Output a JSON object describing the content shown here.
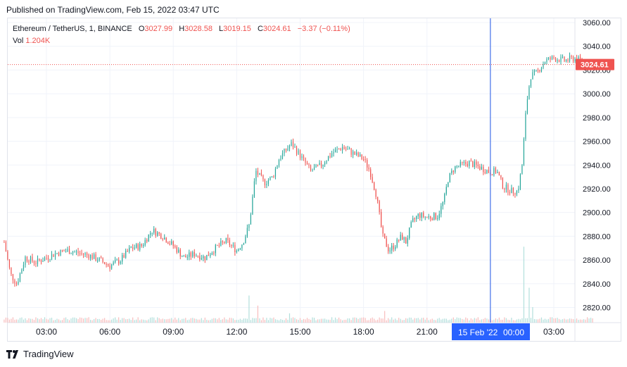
{
  "header": {
    "published": "Published on TradingView.com, Feb 15, 2022 03:47 UTC"
  },
  "legend": {
    "symbol": "Ethereum / TetherUS, 1, BINANCE",
    "open_label": "O",
    "open": "3027.99",
    "high_label": "H",
    "high": "3028.58",
    "low_label": "L",
    "low": "3019.15",
    "close_label": "C",
    "close": "3024.61",
    "change": "−3.37 (−0.11%)",
    "vol_label": "Vol",
    "vol_value": "1.204K"
  },
  "footer": {
    "brand": "TradingView"
  },
  "colors": {
    "up": "#26a69a",
    "down": "#ef5350",
    "grid": "#f0f3fa",
    "crosshair": "#1e53e5",
    "price_line": "#ef5350",
    "axis_text": "#131722",
    "time_label_bg": "#2962ff",
    "vol_up": "#b2dfdb",
    "vol_down": "#f7bdbd"
  },
  "chart_data": {
    "type": "candlestick",
    "y_axis": {
      "side": "right",
      "min": 2810,
      "max": 3065,
      "ticks": [
        2820,
        2840,
        2860,
        2880,
        2900,
        2920,
        2940,
        2960,
        2980,
        3000,
        3020,
        3040,
        3060
      ],
      "tick_labels": [
        "2820.00",
        "2840.00",
        "2860.00",
        "2880.00",
        "2900.00",
        "2920.00",
        "2940.00",
        "2960.00",
        "2980.00",
        "3000.00",
        "3020.00",
        "3040.00",
        "3060.00"
      ]
    },
    "x_axis": {
      "unit": "hours since 00:00 Feb 14 2022 (UTC)",
      "start": 1.0,
      "end": 28.9,
      "tick_hours": [
        3,
        6,
        9,
        12,
        15,
        18,
        21,
        27
      ],
      "tick_labels": [
        "03:00",
        "06:00",
        "09:00",
        "12:00",
        "15:00",
        "18:00",
        "21:00",
        "03:00"
      ]
    },
    "last_price": 3024.61,
    "last_price_label": "3024.61",
    "crosshair": {
      "hour": 24.0,
      "label_date": "15 Feb '22",
      "label_time": "00:00"
    },
    "price_path": [
      [
        1.0,
        2875
      ],
      [
        1.3,
        2848
      ],
      [
        1.6,
        2840
      ],
      [
        2.0,
        2862
      ],
      [
        2.5,
        2858
      ],
      [
        3.0,
        2862
      ],
      [
        3.5,
        2866
      ],
      [
        4.0,
        2868
      ],
      [
        5.0,
        2864
      ],
      [
        5.5,
        2860
      ],
      [
        6.0,
        2855
      ],
      [
        6.5,
        2860
      ],
      [
        7.0,
        2870
      ],
      [
        7.5,
        2872
      ],
      [
        8.0,
        2885
      ],
      [
        8.5,
        2880
      ],
      [
        9.0,
        2872
      ],
      [
        9.5,
        2862
      ],
      [
        10.0,
        2865
      ],
      [
        10.5,
        2862
      ],
      [
        11.0,
        2870
      ],
      [
        11.5,
        2876
      ],
      [
        12.0,
        2868
      ],
      [
        12.3,
        2875
      ],
      [
        12.6,
        2890
      ],
      [
        12.9,
        2935
      ],
      [
        13.3,
        2925
      ],
      [
        13.7,
        2930
      ],
      [
        14.0,
        2945
      ],
      [
        14.3,
        2952
      ],
      [
        14.6,
        2958
      ],
      [
        15.0,
        2948
      ],
      [
        15.5,
        2935
      ],
      [
        16.0,
        2940
      ],
      [
        16.5,
        2950
      ],
      [
        17.0,
        2955
      ],
      [
        17.5,
        2950
      ],
      [
        18.0,
        2945
      ],
      [
        18.3,
        2935
      ],
      [
        18.6,
        2915
      ],
      [
        18.9,
        2880
      ],
      [
        19.2,
        2868
      ],
      [
        19.5,
        2873
      ],
      [
        19.8,
        2880
      ],
      [
        20.0,
        2875
      ],
      [
        20.3,
        2892
      ],
      [
        20.6,
        2898
      ],
      [
        21.0,
        2896
      ],
      [
        21.5,
        2897
      ],
      [
        21.8,
        2910
      ],
      [
        22.0,
        2928
      ],
      [
        22.3,
        2938
      ],
      [
        22.6,
        2940
      ],
      [
        23.0,
        2942
      ],
      [
        23.5,
        2938
      ],
      [
        24.0,
        2934
      ],
      [
        24.3,
        2935
      ],
      [
        24.6,
        2922
      ],
      [
        25.0,
        2918
      ],
      [
        25.3,
        2918
      ],
      [
        25.5,
        2940
      ],
      [
        25.7,
        2990
      ],
      [
        25.9,
        3015
      ],
      [
        26.2,
        3018
      ],
      [
        26.6,
        3028
      ],
      [
        27.0,
        3030
      ],
      [
        27.5,
        3028
      ],
      [
        28.0,
        3030
      ],
      [
        28.3,
        3027
      ],
      [
        28.6,
        3024
      ],
      [
        28.85,
        3024.61
      ]
    ],
    "volume_spikes": [
      [
        12.6,
        0.35
      ],
      [
        13.0,
        0.22
      ],
      [
        14.5,
        0.12
      ],
      [
        19.0,
        0.15
      ],
      [
        25.6,
        0.98
      ],
      [
        25.8,
        0.45
      ],
      [
        26.0,
        0.2
      ]
    ]
  }
}
